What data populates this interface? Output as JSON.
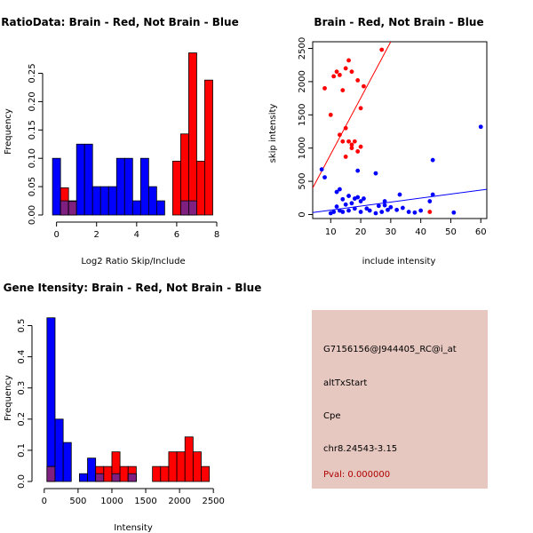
{
  "colors": {
    "brain": "#ff0000",
    "not_brain": "#0000ff",
    "overlap": "#7f1f7f",
    "info_bg": "#e6c8c0",
    "pval": "#b00000",
    "axis": "#000000"
  },
  "chart_data": [
    {
      "id": "ratio",
      "type": "bar",
      "title": "RatioData: Brain - Red, Not Brain - Blue",
      "xlabel": "Log2 Ratio Skip/Include",
      "ylabel": "Frequency",
      "xlim": [
        -0.25,
        8
      ],
      "ylim": [
        0,
        0.29
      ],
      "xticks": [
        0,
        2,
        4,
        6,
        8
      ],
      "yticks": [
        0.0,
        0.05,
        0.1,
        0.15,
        0.2,
        0.25
      ],
      "ytick_labels": [
        "0.00",
        "0.05",
        "0.10",
        "0.15",
        "0.20",
        "0.25"
      ],
      "bin_width": 0.4,
      "bin_starts": [
        -0.2,
        0.2,
        0.6,
        1.0,
        1.4,
        1.8,
        2.2,
        2.6,
        3.0,
        3.4,
        3.8,
        4.2,
        4.6,
        5.0,
        5.4,
        5.8,
        6.2,
        6.6,
        7.0,
        7.4
      ],
      "series": [
        {
          "name": "Not Brain",
          "color": "#0000ff",
          "values": [
            0.1,
            0.025,
            0.025,
            0.125,
            0.125,
            0.05,
            0.05,
            0.05,
            0.1,
            0.1,
            0.025,
            0.1,
            0.05,
            0.025,
            0,
            0,
            0.025,
            0.025,
            0,
            0
          ]
        },
        {
          "name": "Brain",
          "color": "#ff0000",
          "values": [
            0,
            0.048,
            0.024,
            0,
            0,
            0,
            0,
            0,
            0,
            0,
            0,
            0,
            0,
            0,
            0,
            0.095,
            0.143,
            0.286,
            0.095,
            0.238
          ]
        }
      ]
    },
    {
      "id": "scatter",
      "type": "scatter",
      "title": "Brain - Red, Not Brain - Blue",
      "xlabel": "include intensity",
      "ylabel": "skip intensity",
      "xlim": [
        4,
        62
      ],
      "ylim": [
        -60,
        2600
      ],
      "xticks": [
        10,
        20,
        30,
        40,
        50,
        60
      ],
      "yticks": [
        0,
        500,
        1000,
        1500,
        2000,
        2500
      ],
      "series": [
        {
          "name": "Brain",
          "color": "#ff0000",
          "x": [
            8,
            10,
            11,
            12,
            13,
            14,
            15,
            16,
            17,
            19,
            20,
            21,
            13,
            14,
            15,
            16,
            17,
            18,
            19,
            20,
            15,
            17,
            27,
            43
          ],
          "y": [
            1900,
            1500,
            2080,
            2150,
            2100,
            1870,
            2200,
            2320,
            2150,
            2020,
            1600,
            1930,
            1200,
            1100,
            1300,
            1100,
            1000,
            1100,
            950,
            1020,
            870,
            1050,
            2480,
            40
          ]
        },
        {
          "name": "Not Brain",
          "color": "#0000ff",
          "x": [
            7,
            8,
            10,
            11,
            12,
            12,
            13,
            13,
            14,
            14,
            15,
            16,
            16,
            17,
            18,
            18,
            19,
            19,
            20,
            20,
            21,
            22,
            23,
            25,
            25,
            26,
            27,
            28,
            28,
            29,
            30,
            32,
            33,
            34,
            36,
            38,
            40,
            43,
            44,
            44,
            51,
            60
          ],
          "y": [
            680,
            560,
            20,
            40,
            340,
            120,
            380,
            60,
            230,
            40,
            150,
            280,
            60,
            170,
            240,
            90,
            660,
            260,
            200,
            40,
            240,
            90,
            60,
            20,
            620,
            130,
            40,
            140,
            200,
            70,
            110,
            70,
            300,
            100,
            40,
            30,
            60,
            200,
            820,
            300,
            30,
            1320
          ]
        }
      ],
      "fit_lines": [
        {
          "name": "Brain fit",
          "color": "#ff0000",
          "x": [
            4,
            30
          ],
          "y": [
            400,
            2600
          ]
        },
        {
          "name": "Not Brain fit",
          "color": "#0000ff",
          "x": [
            4,
            62
          ],
          "y": [
            30,
            380
          ]
        }
      ]
    },
    {
      "id": "intensity",
      "type": "bar",
      "title": "Gene Itensity: Brain - Red, Not Brain - Blue",
      "xlabel": "Intensity",
      "ylabel": "Frequency",
      "xlim": [
        -50,
        2550
      ],
      "ylim": [
        0,
        0.53
      ],
      "xticks": [
        0,
        500,
        1000,
        1500,
        2000,
        2500
      ],
      "yticks": [
        0.0,
        0.1,
        0.2,
        0.3,
        0.4,
        0.5
      ],
      "ytick_labels": [
        "0.0",
        "0.1",
        "0.2",
        "0.3",
        "0.4",
        "0.5"
      ],
      "bin_width": 120,
      "bin_starts": [
        40,
        160,
        280,
        400,
        520,
        640,
        760,
        880,
        1000,
        1120,
        1240,
        1360,
        1480,
        1600,
        1720,
        1840,
        1960,
        2080,
        2200,
        2320
      ],
      "series": [
        {
          "name": "Not Brain",
          "color": "#0000ff",
          "values": [
            0.525,
            0.2,
            0.125,
            0,
            0.025,
            0.075,
            0.025,
            0,
            0.025,
            0,
            0.025,
            0,
            0,
            0,
            0,
            0,
            0,
            0,
            0,
            0
          ]
        },
        {
          "name": "Brain",
          "color": "#ff0000",
          "values": [
            0.048,
            0,
            0,
            0,
            0,
            0,
            0.048,
            0.048,
            0.095,
            0.048,
            0.048,
            0,
            0,
            0.048,
            0.048,
            0.095,
            0.095,
            0.143,
            0.095,
            0.048
          ]
        }
      ]
    }
  ],
  "info": {
    "gene_id": "G7156156@J944405_RC@i_at",
    "event_type": "altTxStart",
    "gene_symbol": "Cpe",
    "location": "chr8.24543-3.15",
    "pval": "Pval: 0.000000"
  }
}
